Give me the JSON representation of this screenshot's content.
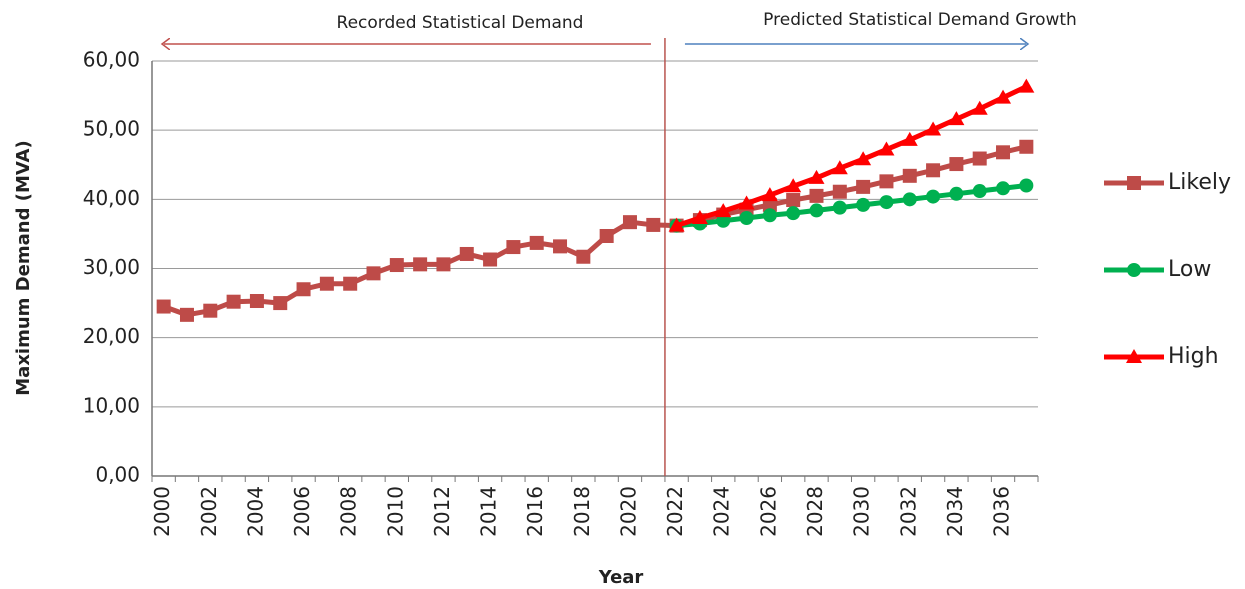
{
  "chart_data": {
    "type": "line",
    "annotations": [
      "Recorded Statistical Demand",
      "Predicted Statistical Demand Growth"
    ],
    "y_label": "Maximum Demand (MVA)",
    "x_label": "Year",
    "categories": [
      "2000",
      null,
      "2002",
      null,
      "2004",
      null,
      "2006",
      null,
      "2008",
      null,
      "2010",
      null,
      "2012",
      null,
      "2014",
      null,
      "2016",
      null,
      "2018",
      null,
      "2020",
      null,
      "2022",
      null,
      "2024",
      null,
      "2026",
      null,
      "2028",
      null,
      "2030",
      null,
      "2032",
      null,
      "2034",
      null,
      "2036",
      null
    ],
    "series": [
      {
        "name": "Likely",
        "color": "#be4b48",
        "marker": "square",
        "values": [
          24.5,
          23.3,
          23.9,
          25.2,
          25.3,
          25.0,
          27.0,
          27.8,
          27.8,
          29.3,
          30.5,
          30.6,
          30.6,
          32.1,
          31.3,
          33.1,
          33.7,
          33.2,
          31.7,
          34.7,
          36.7,
          36.3,
          36.2,
          37.0,
          37.8,
          38.5,
          39.2,
          39.9,
          40.5,
          41.1,
          41.8,
          42.6,
          43.4,
          44.2,
          45.1,
          45.9,
          46.8,
          47.6
        ]
      },
      {
        "name": "Low",
        "color": "#00b050",
        "marker": "circle",
        "values": [
          null,
          null,
          null,
          null,
          null,
          null,
          null,
          null,
          null,
          null,
          null,
          null,
          null,
          null,
          null,
          null,
          null,
          null,
          null,
          null,
          null,
          null,
          36.2,
          36.5,
          36.9,
          37.3,
          37.7,
          38.0,
          38.4,
          38.8,
          39.2,
          39.6,
          40.0,
          40.4,
          40.8,
          41.2,
          41.6,
          42.0
        ]
      },
      {
        "name": "High",
        "color": "#ff0000",
        "marker": "triangle",
        "values": [
          null,
          null,
          null,
          null,
          null,
          null,
          null,
          null,
          null,
          null,
          null,
          null,
          null,
          null,
          null,
          null,
          null,
          null,
          null,
          null,
          null,
          null,
          36.2,
          37.3,
          38.3,
          39.4,
          40.6,
          41.9,
          43.1,
          44.5,
          45.8,
          47.2,
          48.6,
          50.1,
          51.6,
          53.1,
          54.7,
          56.3
        ]
      }
    ],
    "ylim": [
      0,
      60
    ],
    "yticks": [
      {
        "value": 0,
        "label": "0,00"
      },
      {
        "value": 10,
        "label": "10,00"
      },
      {
        "value": 20,
        "label": "20,00"
      },
      {
        "value": 30,
        "label": "30,00"
      },
      {
        "value": 40,
        "label": "40,00"
      },
      {
        "value": 50,
        "label": "50,00"
      },
      {
        "value": 60,
        "label": "60,00"
      }
    ],
    "grid": true,
    "legend": "right"
  }
}
